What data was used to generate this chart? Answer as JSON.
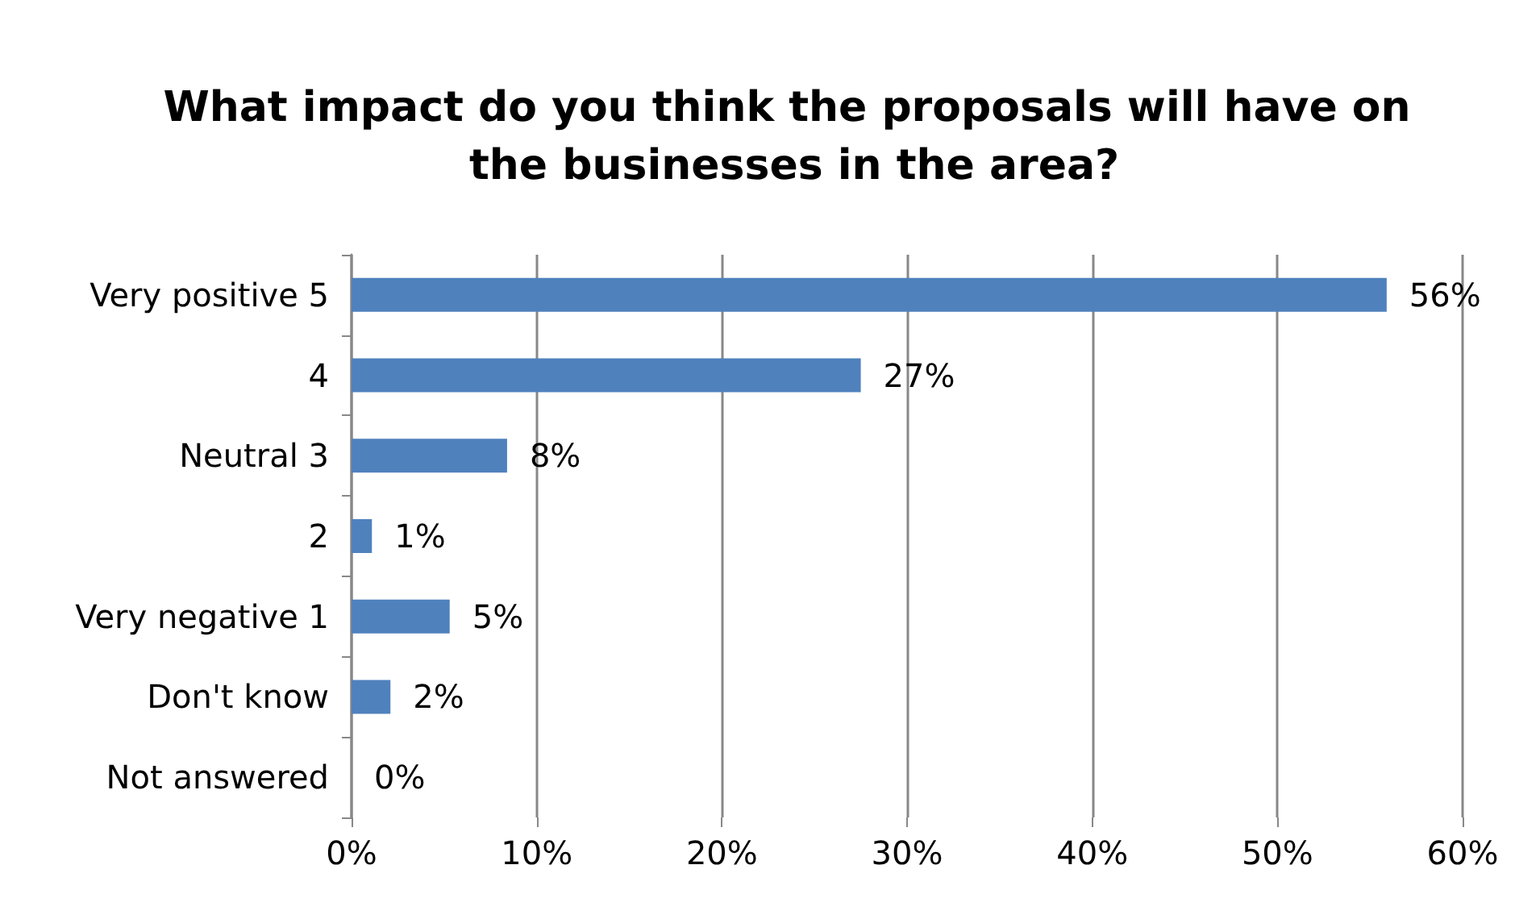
{
  "chart_data": {
    "type": "bar",
    "orientation": "horizontal",
    "title": "What impact do you think the proposals will have on the businesses in the area?",
    "categories": [
      "Very positive 5",
      "4",
      "Neutral 3",
      "2",
      "Very negative 1",
      "Don't know",
      "Not answered"
    ],
    "values": [
      55.9,
      27.5,
      8.4,
      1.1,
      5.3,
      2.1,
      0
    ],
    "value_labels": [
      "56%",
      "27%",
      "8%",
      "1%",
      "5%",
      "2%",
      "0%"
    ],
    "color": "#4f81bd",
    "xlim": [
      0,
      60
    ],
    "xticks": [
      {
        "value": 0,
        "label": "0%"
      },
      {
        "value": 10,
        "label": "10%"
      },
      {
        "value": 20,
        "label": "20%"
      },
      {
        "value": 30,
        "label": "30%"
      },
      {
        "value": 40,
        "label": "40%"
      },
      {
        "value": 50,
        "label": "50%"
      },
      {
        "value": 60,
        "label": "60%"
      }
    ],
    "grid": "x"
  }
}
